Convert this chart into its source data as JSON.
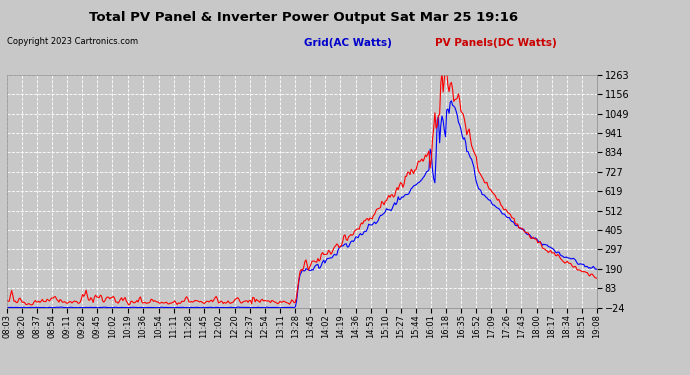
{
  "title": "Total PV Panel & Inverter Power Output Sat Mar 25 19:16",
  "copyright": "Copyright 2023 Cartronics.com",
  "legend_blue": "Grid(AC Watts)",
  "legend_red": "PV Panels(DC Watts)",
  "yticks": [
    -24.5,
    82.8,
    190.1,
    297.4,
    404.8,
    512.1,
    619.4,
    726.7,
    834.0,
    941.3,
    1048.6,
    1155.9,
    1263.2
  ],
  "ylim": [
    -24.5,
    1263.2
  ],
  "bg_color": "#c8c8c8",
  "plot_bg_color": "#c8c8c8",
  "grid_color": "#ffffff",
  "line_blue": "#0000ff",
  "line_red": "#ff0000",
  "title_color": "#000000",
  "copyright_color": "#000000",
  "legend_blue_color": "#0000cc",
  "legend_red_color": "#cc0000",
  "x_labels": [
    "08:03",
    "08:20",
    "08:37",
    "08:54",
    "09:11",
    "09:28",
    "09:45",
    "10:02",
    "10:19",
    "10:36",
    "10:54",
    "11:11",
    "11:28",
    "11:45",
    "12:02",
    "12:20",
    "12:37",
    "12:54",
    "13:11",
    "13:28",
    "13:45",
    "14:02",
    "14:19",
    "14:36",
    "14:53",
    "15:10",
    "15:27",
    "15:44",
    "16:01",
    "16:18",
    "16:35",
    "16:52",
    "17:09",
    "17:26",
    "17:43",
    "18:00",
    "18:17",
    "18:34",
    "18:51",
    "19:08"
  ],
  "n_points": 500
}
